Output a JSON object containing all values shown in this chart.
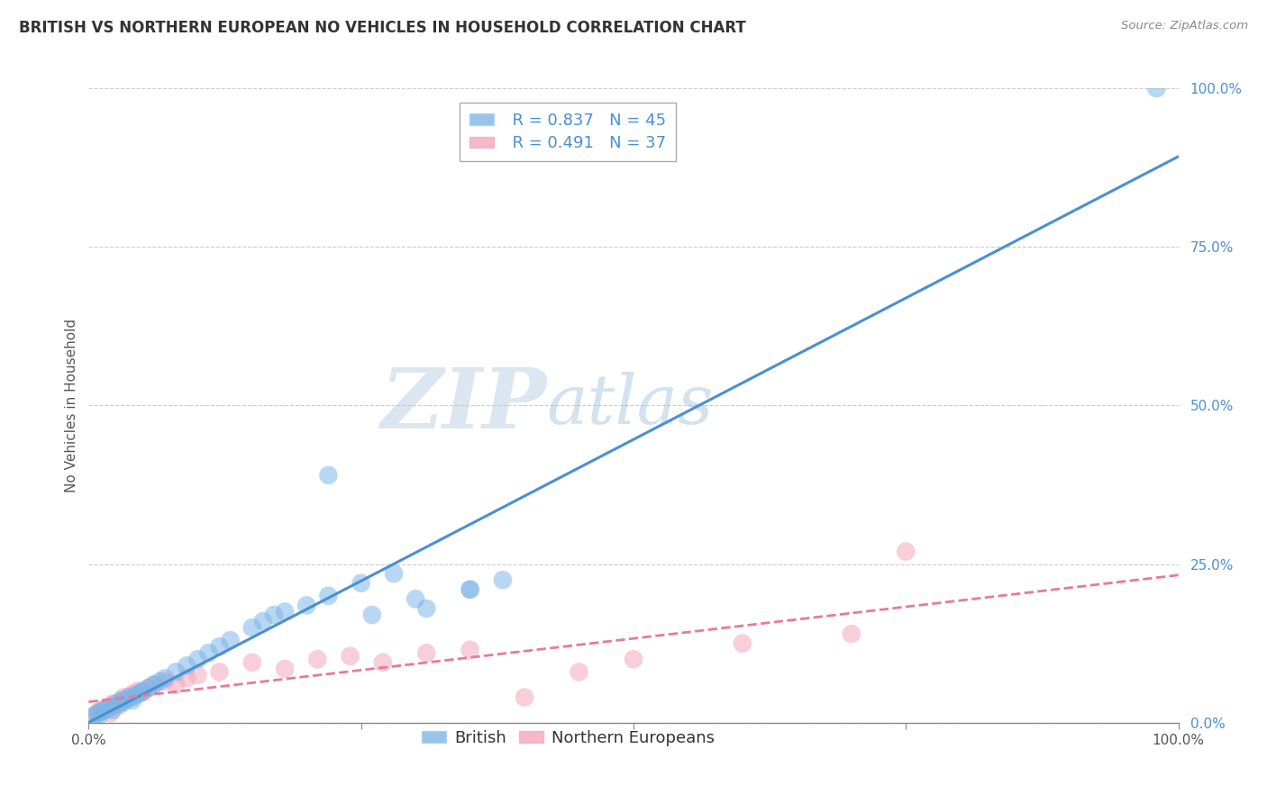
{
  "title": "BRITISH VS NORTHERN EUROPEAN NO VEHICLES IN HOUSEHOLD CORRELATION CHART",
  "source": "Source: ZipAtlas.com",
  "ylabel": "No Vehicles in Household",
  "xlim": [
    0,
    1.0
  ],
  "ylim": [
    0,
    1.0
  ],
  "british_R": "R = 0.837",
  "british_N": "N = 45",
  "northern_R": "R = 0.491",
  "northern_N": "N = 37",
  "british_color": "#7eb6e8",
  "northern_color": "#f4a7b9",
  "british_line_color": "#4a8fd4",
  "northern_line_color": "#e87a95",
  "grid_color": "#cccccc",
  "bg_color": "#ffffff",
  "watermark_zip": "ZIP",
  "watermark_atlas": "atlas",
  "british_scatter_x": [
    0.005,
    0.008,
    0.01,
    0.012,
    0.015,
    0.018,
    0.02,
    0.022,
    0.025,
    0.028,
    0.03,
    0.032,
    0.035,
    0.038,
    0.04,
    0.042,
    0.045,
    0.048,
    0.05,
    0.055,
    0.06,
    0.065,
    0.07,
    0.08,
    0.09,
    0.1,
    0.11,
    0.12,
    0.13,
    0.15,
    0.16,
    0.17,
    0.18,
    0.2,
    0.22,
    0.25,
    0.28,
    0.3,
    0.35,
    0.38,
    0.22,
    0.26,
    0.31,
    0.35,
    0.98
  ],
  "british_scatter_y": [
    0.01,
    0.015,
    0.012,
    0.018,
    0.02,
    0.022,
    0.025,
    0.02,
    0.03,
    0.028,
    0.035,
    0.032,
    0.038,
    0.04,
    0.035,
    0.042,
    0.045,
    0.048,
    0.05,
    0.055,
    0.06,
    0.065,
    0.07,
    0.08,
    0.09,
    0.1,
    0.11,
    0.12,
    0.13,
    0.15,
    0.16,
    0.17,
    0.175,
    0.185,
    0.2,
    0.22,
    0.235,
    0.195,
    0.21,
    0.225,
    0.39,
    0.17,
    0.18,
    0.21,
    1.0
  ],
  "northern_scatter_x": [
    0.005,
    0.008,
    0.01,
    0.012,
    0.015,
    0.018,
    0.02,
    0.022,
    0.025,
    0.028,
    0.03,
    0.032,
    0.035,
    0.038,
    0.04,
    0.045,
    0.05,
    0.055,
    0.06,
    0.07,
    0.08,
    0.09,
    0.1,
    0.12,
    0.15,
    0.18,
    0.21,
    0.24,
    0.27,
    0.31,
    0.35,
    0.4,
    0.45,
    0.5,
    0.6,
    0.7,
    0.75
  ],
  "northern_scatter_y": [
    0.012,
    0.015,
    0.018,
    0.02,
    0.022,
    0.025,
    0.015,
    0.03,
    0.028,
    0.032,
    0.035,
    0.04,
    0.038,
    0.042,
    0.045,
    0.05,
    0.048,
    0.055,
    0.06,
    0.065,
    0.06,
    0.07,
    0.075,
    0.08,
    0.095,
    0.085,
    0.1,
    0.105,
    0.095,
    0.11,
    0.115,
    0.04,
    0.08,
    0.1,
    0.125,
    0.14,
    0.27
  ],
  "title_fontsize": 12,
  "axis_label_fontsize": 11,
  "tick_fontsize": 11,
  "legend_fontsize": 13
}
